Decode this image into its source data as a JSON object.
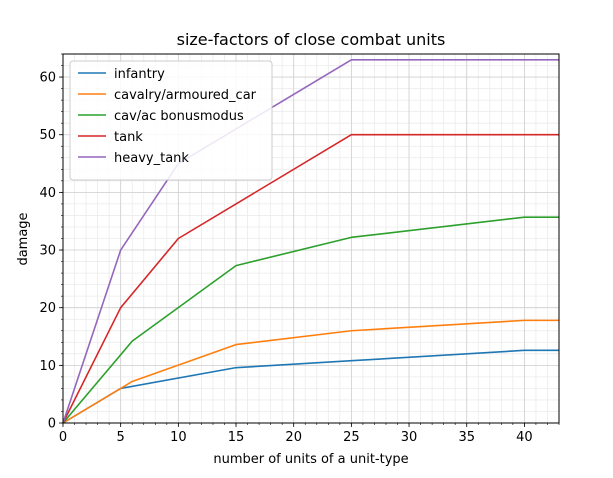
{
  "chart_data": {
    "type": "line",
    "title": "size-factors of close combat units",
    "xlabel": "number of units of a unit-type",
    "ylabel": "damage",
    "xlim": [
      0,
      43
    ],
    "ylim": [
      0,
      64
    ],
    "xticks": [
      0,
      5,
      10,
      15,
      20,
      25,
      30,
      35,
      40
    ],
    "yticks": [
      0,
      10,
      20,
      30,
      40,
      50,
      60
    ],
    "x_minor_step": 1,
    "y_minor_step": 2,
    "grid": true,
    "legend_position": "top-left",
    "series": [
      {
        "name": "infantry",
        "color": "#1f77b4",
        "points": [
          [
            0,
            0
          ],
          [
            5,
            6
          ],
          [
            15,
            9.6
          ],
          [
            25,
            10.8
          ],
          [
            40,
            12.6
          ],
          [
            43,
            12.6
          ]
        ]
      },
      {
        "name": "cavalry/armoured_car",
        "color": "#ff7f0e",
        "points": [
          [
            0,
            0
          ],
          [
            5,
            6
          ],
          [
            6,
            7.2
          ],
          [
            15,
            13.6
          ],
          [
            25,
            16
          ],
          [
            40,
            17.8
          ],
          [
            43,
            17.8
          ]
        ]
      },
      {
        "name": "cav/ac bonusmodus",
        "color": "#2ca02c",
        "points": [
          [
            0,
            0
          ],
          [
            6,
            14.2
          ],
          [
            15,
            27.3
          ],
          [
            25,
            32.2
          ],
          [
            40,
            35.7
          ],
          [
            43,
            35.7
          ]
        ]
      },
      {
        "name": "tank",
        "color": "#d62728",
        "points": [
          [
            0,
            0
          ],
          [
            5,
            20
          ],
          [
            10,
            32
          ],
          [
            25,
            50
          ],
          [
            43,
            50
          ]
        ]
      },
      {
        "name": "heavy_tank",
        "color": "#9467bd",
        "points": [
          [
            0,
            0
          ],
          [
            5,
            30
          ],
          [
            10,
            45
          ],
          [
            25,
            63
          ],
          [
            43,
            63
          ]
        ]
      }
    ]
  }
}
